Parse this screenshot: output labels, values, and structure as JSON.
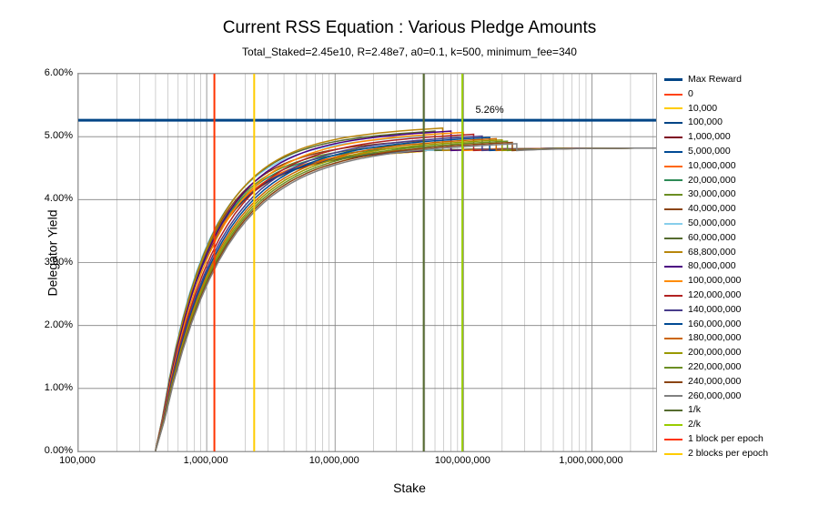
{
  "chart": {
    "title": "Current RSS Equation : Various Pledge Amounts",
    "subtitle": "Total_Staked=2.45e10, R=2.48e7, a0=0.1, k=500, minimum_fee=340",
    "xlabel": "Stake",
    "ylabel": "Delegator Yield",
    "annotation": "5.26%",
    "ylim": [
      0,
      6
    ],
    "yticks": [
      "0.00%",
      "1.00%",
      "2.00%",
      "3.00%",
      "4.00%",
      "5.00%",
      "6.00%"
    ],
    "x_log_min": 5,
    "x_log_max": 9.5,
    "xticks": [
      {
        "v": 5,
        "label": "100,000"
      },
      {
        "v": 6,
        "label": "1,000,000"
      },
      {
        "v": 7,
        "label": "10,000,000"
      },
      {
        "v": 8,
        "label": "100,000,000"
      },
      {
        "v": 9,
        "label": "1,000,000,000"
      }
    ],
    "minor_gridlines_x": [
      5.301,
      5.477,
      5.602,
      5.699,
      5.778,
      5.845,
      5.903,
      5.954,
      6.301,
      6.477,
      6.602,
      6.699,
      6.778,
      6.845,
      6.903,
      6.954,
      7.301,
      7.477,
      7.602,
      7.699,
      7.778,
      7.845,
      7.903,
      7.954,
      8.301,
      8.477,
      8.602,
      8.699,
      8.778,
      8.845,
      8.903,
      8.954,
      9.301,
      9.477
    ],
    "grid_color": "#808080",
    "minor_grid_color": "#b0b0b0",
    "background_color": "#ffffff",
    "max_reward_y": 5.26,
    "vlines": [
      {
        "name": "1/k",
        "x_log": 7.69,
        "color": "#556b2f",
        "width": 2
      },
      {
        "name": "2/k",
        "x_log": 7.991,
        "color": "#99cc00",
        "width": 2
      },
      {
        "name": "1 block per epoch",
        "x_log": 6.06,
        "color": "#ff3300",
        "width": 2
      },
      {
        "name": "2 blocks per epoch",
        "x_log": 6.37,
        "color": "#ffcc00",
        "width": 2
      }
    ],
    "legend": [
      {
        "label": "Max Reward",
        "color": "#004586",
        "width": 3
      },
      {
        "label": "0",
        "color": "#ff420e",
        "width": 2
      },
      {
        "label": "10,000",
        "color": "#ffcc00",
        "width": 2
      },
      {
        "label": "100,000",
        "color": "#004586",
        "width": 2
      },
      {
        "label": "1,000,000",
        "color": "#7e0021",
        "width": 2
      },
      {
        "label": "5,000,000",
        "color": "#004a94",
        "width": 2
      },
      {
        "label": "10,000,000",
        "color": "#ff6600",
        "width": 2
      },
      {
        "label": "20,000,000",
        "color": "#2e8b57",
        "width": 2
      },
      {
        "label": "30,000,000",
        "color": "#6b8e23",
        "width": 2
      },
      {
        "label": "40,000,000",
        "color": "#8b4513",
        "width": 2
      },
      {
        "label": "50,000,000",
        "color": "#87ceeb",
        "width": 2
      },
      {
        "label": "60,000,000",
        "color": "#556b2f",
        "width": 2
      },
      {
        "label": "68,800,000",
        "color": "#b8860b",
        "width": 2
      },
      {
        "label": "80,000,000",
        "color": "#4b0082",
        "width": 2
      },
      {
        "label": "100,000,000",
        "color": "#ff8c00",
        "width": 2
      },
      {
        "label": "120,000,000",
        "color": "#b22222",
        "width": 2
      },
      {
        "label": "140,000,000",
        "color": "#483d8b",
        "width": 2
      },
      {
        "label": "160,000,000",
        "color": "#004a94",
        "width": 2
      },
      {
        "label": "180,000,000",
        "color": "#cc6600",
        "width": 2
      },
      {
        "label": "200,000,000",
        "color": "#999900",
        "width": 2
      },
      {
        "label": "220,000,000",
        "color": "#6b8e23",
        "width": 2
      },
      {
        "label": "240,000,000",
        "color": "#8b4513",
        "width": 2
      },
      {
        "label": "260,000,000",
        "color": "#808080",
        "width": 2
      },
      {
        "label": "1/k",
        "color": "#556b2f",
        "width": 2
      },
      {
        "label": "2/k",
        "color": "#99cc00",
        "width": 2
      },
      {
        "label": "1 block per epoch",
        "color": "#ff3300",
        "width": 2
      },
      {
        "label": "2 blocks per epoch",
        "color": "#ffcc00",
        "width": 2
      }
    ],
    "series": [
      {
        "name": "0",
        "color": "#ff420e",
        "peak": 4.78,
        "x0_log": 5.6,
        "cap": 7.69
      },
      {
        "name": "10,000",
        "color": "#ffcc00",
        "peak": 4.78,
        "x0_log": 5.6,
        "cap": 7.69
      },
      {
        "name": "100,000",
        "color": "#004586",
        "peak": 4.785,
        "x0_log": 5.6,
        "cap": 7.69
      },
      {
        "name": "1,000,000",
        "color": "#7e0021",
        "peak": 4.79,
        "x0_log": 5.6,
        "cap": 7.69
      },
      {
        "name": "5,000,000",
        "color": "#004a94",
        "peak": 4.8,
        "x0_log": 5.6,
        "cap": 7.69
      },
      {
        "name": "10,000,000",
        "color": "#ff6600",
        "peak": 4.82,
        "x0_log": 5.6,
        "cap": 7.69
      },
      {
        "name": "20,000,000",
        "color": "#2e8b57",
        "peak": 4.86,
        "x0_log": 5.6,
        "cap": 7.69
      },
      {
        "name": "30,000,000",
        "color": "#6b8e23",
        "peak": 4.9,
        "x0_log": 5.6,
        "cap": 7.69
      },
      {
        "name": "40,000,000",
        "color": "#8b4513",
        "peak": 4.95,
        "x0_log": 5.6,
        "cap": 7.69
      },
      {
        "name": "50,000,000",
        "color": "#87ceeb",
        "peak": 5.02,
        "x0_log": 5.6,
        "cap": 7.69
      },
      {
        "name": "60,000,000",
        "color": "#556b2f",
        "peak": 5.1,
        "x0_log": 5.6,
        "cap": 7.778
      },
      {
        "name": "68,800,000",
        "color": "#b8860b",
        "peak": 5.15,
        "x0_log": 5.6,
        "cap": 7.838
      },
      {
        "name": "80,000,000",
        "color": "#4b0082",
        "peak": 5.1,
        "x0_log": 5.6,
        "cap": 7.903
      },
      {
        "name": "100,000,000",
        "color": "#ff8c00",
        "peak": 5.08,
        "x0_log": 5.6,
        "cap": 8.0
      },
      {
        "name": "120,000,000",
        "color": "#b22222",
        "peak": 5.05,
        "x0_log": 5.6,
        "cap": 8.079
      },
      {
        "name": "140,000,000",
        "color": "#483d8b",
        "peak": 5.02,
        "x0_log": 5.6,
        "cap": 8.146
      },
      {
        "name": "160,000,000",
        "color": "#004a94",
        "peak": 5.0,
        "x0_log": 5.6,
        "cap": 8.204
      },
      {
        "name": "180,000,000",
        "color": "#cc6600",
        "peak": 4.98,
        "x0_log": 5.6,
        "cap": 8.255
      },
      {
        "name": "200,000,000",
        "color": "#999900",
        "peak": 4.96,
        "x0_log": 5.6,
        "cap": 8.301
      },
      {
        "name": "220,000,000",
        "color": "#6b8e23",
        "peak": 4.94,
        "x0_log": 5.6,
        "cap": 8.342
      },
      {
        "name": "240,000,000",
        "color": "#8b4513",
        "peak": 4.92,
        "x0_log": 5.6,
        "cap": 8.38
      },
      {
        "name": "260,000,000",
        "color": "#808080",
        "peak": 4.9,
        "x0_log": 5.6,
        "cap": 8.415
      }
    ]
  }
}
